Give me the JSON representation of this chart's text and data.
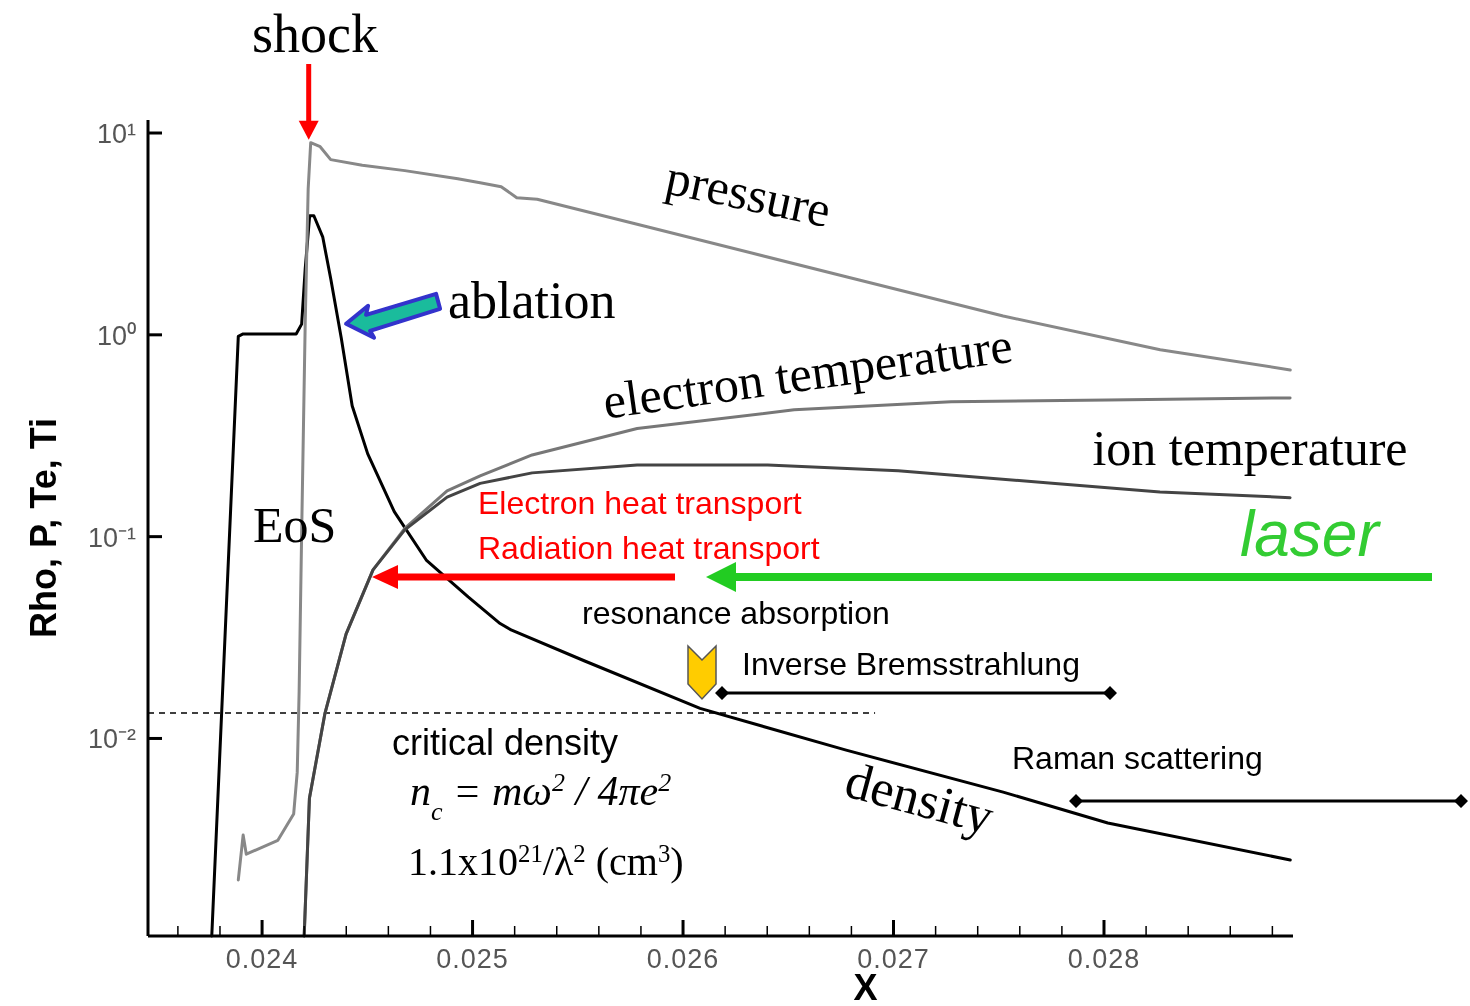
{
  "chart_data": {
    "type": "line",
    "xlabel": "X",
    "ylabel": "Rho, P, Te, Ti",
    "log": "y",
    "grid": false,
    "marker": "none",
    "line_style": "solid",
    "xlim": [
      0.023458,
      0.028898
    ],
    "ylim": [
      0.00105,
      11.6
    ],
    "xticks": [
      {
        "value": 0.0236,
        "label": null
      },
      {
        "value": 0.0238,
        "label": null
      },
      0.024,
      {
        "value": 0.0242,
        "label": null
      },
      {
        "value": 0.0244,
        "label": null
      },
      {
        "value": 0.0246,
        "label": null
      },
      {
        "value": 0.0248,
        "label": null
      },
      0.025,
      {
        "value": 0.0252,
        "label": null
      },
      {
        "value": 0.0254,
        "label": null
      },
      {
        "value": 0.0256,
        "label": null
      },
      {
        "value": 0.0258,
        "label": null
      },
      0.026,
      {
        "value": 0.0262,
        "label": null
      },
      {
        "value": 0.0264,
        "label": null
      },
      {
        "value": 0.0266,
        "label": null
      },
      {
        "value": 0.0268,
        "label": null
      },
      0.027,
      {
        "value": 0.0272,
        "label": null
      },
      {
        "value": 0.0274,
        "label": null
      },
      {
        "value": 0.0276,
        "label": null
      },
      {
        "value": 0.0278,
        "label": null
      },
      0.028,
      {
        "value": 0.0282,
        "label": null
      },
      {
        "value": 0.0284,
        "label": null
      },
      {
        "value": 0.0286,
        "label": null
      },
      {
        "value": 0.0288,
        "label": null
      }
    ],
    "yticks": [
      {
        "value": 0.01,
        "label": "10⁻²"
      },
      {
        "value": 0.1,
        "label": "10⁻¹"
      },
      {
        "value": 1,
        "label": "10⁰"
      },
      {
        "value": 10,
        "label": "10¹"
      }
    ],
    "series": [
      {
        "name": "density",
        "color": "#000000",
        "x": [
          0.023761,
          0.023887,
          0.02391,
          0.024162,
          0.024188,
          0.024205,
          0.024226,
          0.024246,
          0.024288,
          0.024326,
          0.024376,
          0.024428,
          0.024502,
          0.024628,
          0.02478,
          0.024979,
          0.025131,
          0.025183,
          0.025533,
          0.026081,
          0.026775,
          0.027521,
          0.028018,
          0.028885
        ],
        "values": [
          0.00105,
          0.983,
          1.01,
          1.01,
          1.13,
          2.13,
          3.89,
          3.89,
          3.06,
          1.9,
          0.966,
          0.445,
          0.257,
          0.133,
          0.0766,
          0.0503,
          0.0371,
          0.0345,
          0.0242,
          0.0141,
          0.00875,
          0.00542,
          0.00381,
          0.0025
        ]
      },
      {
        "name": "pressure",
        "color": "#888888",
        "x": [
          0.023887,
          0.02391,
          0.023925,
          0.024075,
          0.02415,
          0.024167,
          0.024176,
          0.024188,
          0.024205,
          0.024219,
          0.024231,
          0.024276,
          0.024326,
          0.024476,
          0.024678,
          0.02493,
          0.025036,
          0.025136,
          0.02521,
          0.025307,
          0.025782,
          0.026775,
          0.027521,
          0.028267,
          0.028885
        ],
        "values": [
          0.00199,
          0.00332,
          0.00267,
          0.00313,
          0.00422,
          0.00681,
          0.017,
          0.104,
          1.16,
          5.29,
          8.95,
          8.55,
          7.38,
          6.92,
          6.51,
          5.93,
          5.67,
          5.42,
          4.78,
          4.7,
          3.53,
          1.94,
          1.24,
          0.843,
          0.67
        ]
      },
      {
        "name": "electron temperature",
        "color": "#777777",
        "x": [
          0.0242,
          0.024225,
          0.024299,
          0.024399,
          0.024527,
          0.024678,
          0.024879,
          0.025036,
          0.025283,
          0.025782,
          0.026528,
          0.027273,
          0.028017,
          0.028884
        ],
        "values": [
          0.00105,
          0.00506,
          0.01336,
          0.0329,
          0.0684,
          0.11,
          0.1686,
          0.2,
          0.254,
          0.3435,
          0.425,
          0.466,
          0.476,
          0.487
        ]
      },
      {
        "name": "ion temperature",
        "color": "#444444",
        "x": [
          0.0242,
          0.024225,
          0.024299,
          0.024399,
          0.024527,
          0.024678,
          0.024879,
          0.025036,
          0.025283,
          0.025782,
          0.026402,
          0.027022,
          0.027768,
          0.028266,
          0.028884
        ],
        "values": [
          0.00105,
          0.00506,
          0.01336,
          0.0329,
          0.0684,
          0.108,
          0.157,
          0.1836,
          0.207,
          0.2266,
          0.2266,
          0.212,
          0.1836,
          0.1666,
          0.156
        ]
      }
    ],
    "ref_lines": [
      {
        "axis": "y",
        "value": 0.01336,
        "line_style": "dashed",
        "color": "#000000"
      }
    ],
    "annotations": [
      {
        "text": "shock",
        "x": 0.024231,
        "y": 8.95
      },
      {
        "text": "ablation",
        "x": 0.02438,
        "y": 1.16
      },
      "EoS",
      "Electron heat transport",
      "Radiation heat transport",
      "laser",
      "resonance absorption",
      "Inverse Bremsstrahlung",
      "Raman scattering",
      "critical density",
      "n$_{c}$ = mω$^{2}$ / 4πe$^{2}$",
      "1.1x10$^{21}$/λ$^{2}$ (cm$^{3}$)"
    ]
  }
}
